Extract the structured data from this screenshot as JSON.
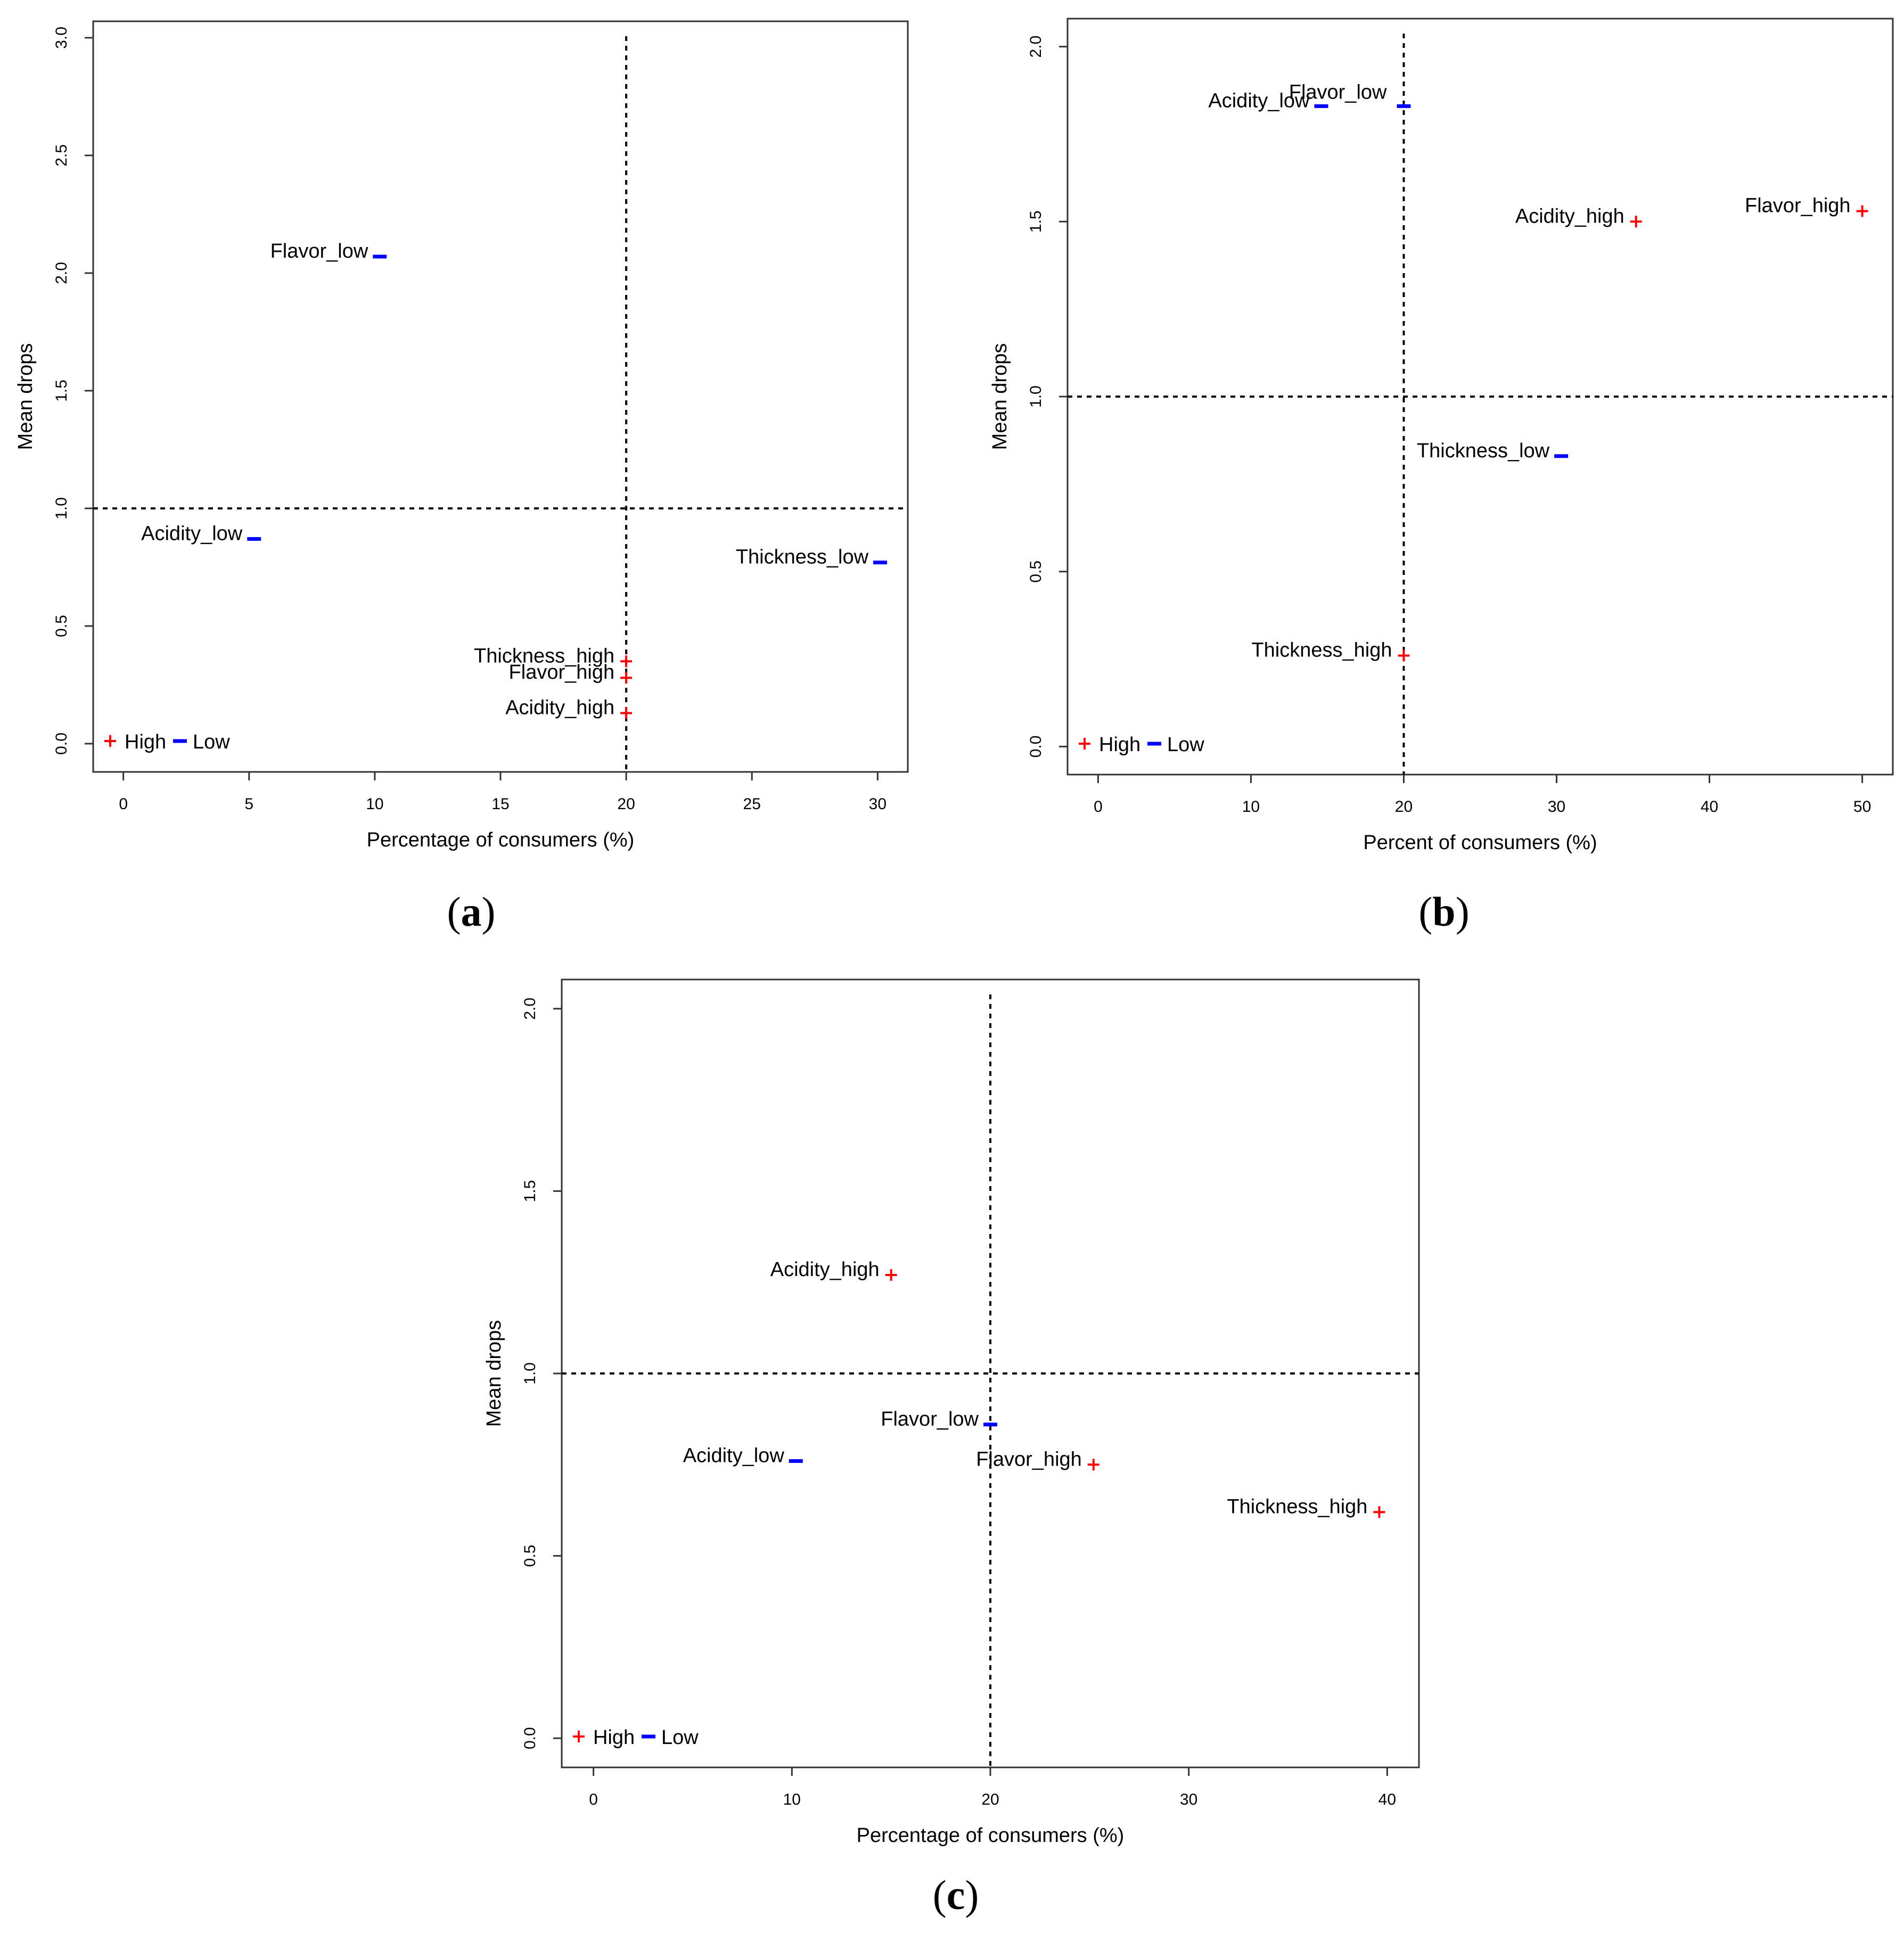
{
  "colors": {
    "high": "#ff0000",
    "low": "#0000ff",
    "axis": "#333333",
    "text": "#000000"
  },
  "chart_data": [
    {
      "panel": "a",
      "caption": "a",
      "type": "scatter",
      "xlabel": "Percentage of consumers (%)",
      "ylabel": "Mean drops",
      "xlim": [
        -1.2,
        31.2
      ],
      "ylim": [
        -0.12,
        3.07
      ],
      "xticks": [
        "0",
        "5",
        "10",
        "15",
        "20",
        "25",
        "30"
      ],
      "yticks": [
        "0.0",
        "0.5",
        "1.0",
        "1.5",
        "2.0",
        "2.5",
        "3.0"
      ],
      "ref_x": 20,
      "ref_y": 1.0,
      "legend": [
        {
          "label": "High",
          "marker": "+"
        },
        {
          "label": "Low",
          "marker": "-"
        }
      ],
      "points": [
        {
          "label": "Flavor_low",
          "x": 10.2,
          "y": 2.07,
          "group": "low"
        },
        {
          "label": "Acidity_low",
          "x": 5.2,
          "y": 0.87,
          "group": "low"
        },
        {
          "label": "Thickness_low",
          "x": 30.1,
          "y": 0.77,
          "group": "low"
        },
        {
          "label": "Thickness_high",
          "x": 20.0,
          "y": 0.35,
          "group": "high"
        },
        {
          "label": "Flavor_high",
          "x": 20.0,
          "y": 0.28,
          "group": "high"
        },
        {
          "label": "Acidity_high",
          "x": 20.0,
          "y": 0.13,
          "group": "high"
        }
      ]
    },
    {
      "panel": "b",
      "caption": "b",
      "type": "scatter",
      "xlabel": "Percent of consumers (%)",
      "ylabel": "Mean drops",
      "xlim": [
        -2,
        52
      ],
      "ylim": [
        -0.08,
        2.08
      ],
      "xticks": [
        "0",
        "10",
        "20",
        "30",
        "40",
        "50"
      ],
      "yticks": [
        "0.0",
        "0.5",
        "1.0",
        "1.5",
        "2.0"
      ],
      "ref_x": 20,
      "ref_y": 1.0,
      "legend": [
        {
          "label": "High",
          "marker": "+"
        },
        {
          "label": "Low",
          "marker": "-"
        }
      ],
      "points": [
        {
          "label": "Acidity_low",
          "x": 14.6,
          "y": 1.83,
          "group": "low"
        },
        {
          "label": "Flavor_low",
          "x": 20.0,
          "y": 1.83,
          "group": "low"
        },
        {
          "label": "Acidity_high",
          "x": 35.2,
          "y": 1.5,
          "group": "high"
        },
        {
          "label": "Flavor_high",
          "x": 50.0,
          "y": 1.53,
          "group": "high"
        },
        {
          "label": "Thickness_low",
          "x": 30.3,
          "y": 0.83,
          "group": "low"
        },
        {
          "label": "Thickness_high",
          "x": 20.0,
          "y": 0.26,
          "group": "high"
        }
      ]
    },
    {
      "panel": "c",
      "caption": "c",
      "type": "scatter",
      "xlabel": "Percentage of consumers (%)",
      "ylabel": "Mean drops",
      "xlim": [
        -1.6,
        41.6
      ],
      "ylim": [
        -0.08,
        2.08
      ],
      "xticks": [
        "0",
        "10",
        "20",
        "30",
        "40"
      ],
      "yticks": [
        "0.0",
        "0.5",
        "1.0",
        "1.5",
        "2.0"
      ],
      "ref_x": 20,
      "ref_y": 1.0,
      "legend": [
        {
          "label": "High",
          "marker": "+"
        },
        {
          "label": "Low",
          "marker": "-"
        }
      ],
      "points": [
        {
          "label": "Acidity_high",
          "x": 15.0,
          "y": 1.27,
          "group": "high"
        },
        {
          "label": "Flavor_low",
          "x": 20.0,
          "y": 0.86,
          "group": "low"
        },
        {
          "label": "Acidity_low",
          "x": 10.2,
          "y": 0.76,
          "group": "low"
        },
        {
          "label": "Flavor_high",
          "x": 25.2,
          "y": 0.75,
          "group": "high"
        },
        {
          "label": "Thickness_high",
          "x": 39.6,
          "y": 0.62,
          "group": "high"
        }
      ]
    }
  ]
}
